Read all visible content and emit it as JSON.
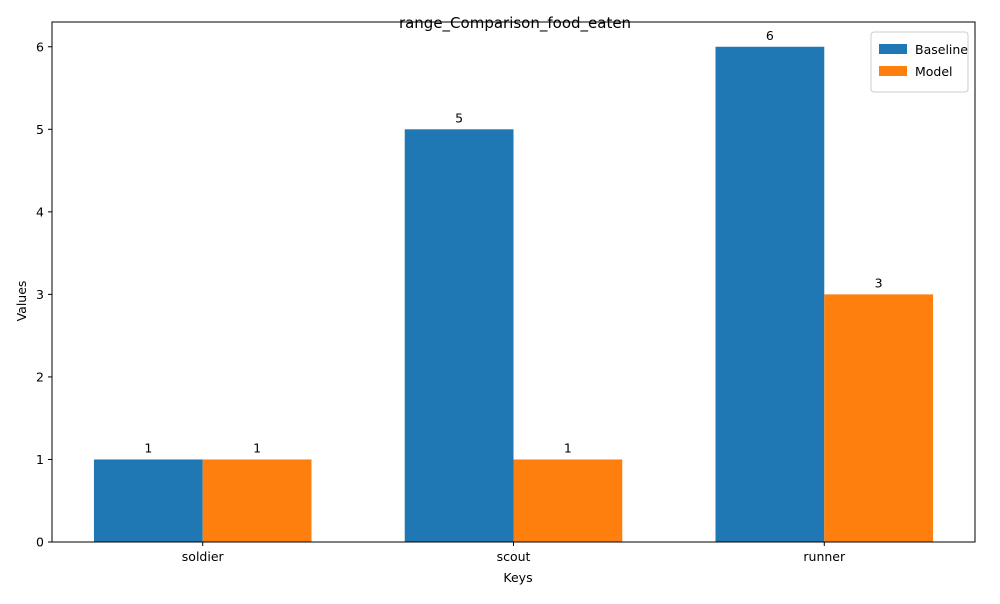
{
  "chart_data": {
    "type": "bar",
    "title": "range_Comparison_food_eaten",
    "xlabel": "Keys",
    "ylabel": "Values",
    "categories": [
      "soldier",
      "scout",
      "runner"
    ],
    "series": [
      {
        "name": "Baseline",
        "values": [
          1,
          5,
          6
        ],
        "color": "#1f77b4"
      },
      {
        "name": "Model",
        "values": [
          1,
          1,
          3
        ],
        "color": "#ff7f0e"
      }
    ],
    "ylim": [
      0,
      6.3
    ],
    "yticks": [
      "0",
      "1",
      "2",
      "3",
      "4",
      "5",
      "6"
    ],
    "grid": false,
    "legend_position": "top-right",
    "data_labels": true
  }
}
